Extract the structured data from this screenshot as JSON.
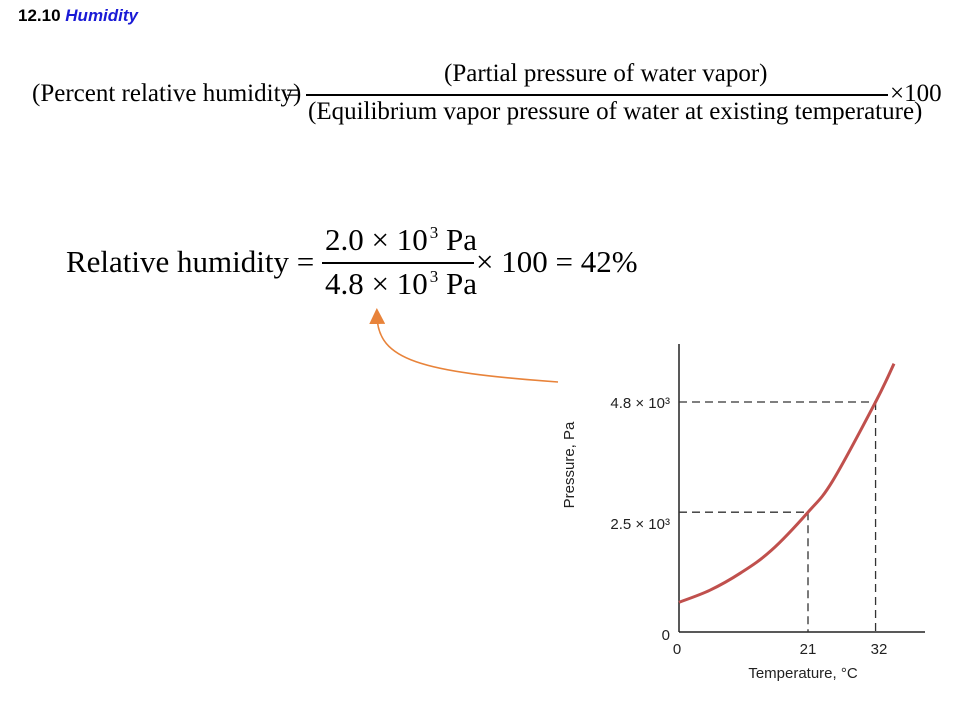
{
  "title": {
    "number": "12.10",
    "word": "Humidity"
  },
  "formula1": {
    "lhs": "(Percent relative humidity)",
    "equals": "=",
    "numerator": "(Partial pressure of water vapor)",
    "denominator": "(Equilibrium vapor pressure of water at existing temperature)",
    "times": "×100"
  },
  "formula2": {
    "lhs": "Relative humidity =",
    "num_mantissa": "2.0 × 10",
    "num_exp": "3",
    "num_unit": "Pa",
    "den_mantissa": "4.8 × 10",
    "den_exp": "3",
    "den_unit": "Pa",
    "rhs": "× 100 = 42%"
  },
  "colors": {
    "curve": "#c0504d",
    "arrow": "#e8833a",
    "title_accent": "#1a1ad6"
  },
  "chart_data": {
    "type": "line",
    "xlabel": "Temperature, °C",
    "ylabel": "Pressure, Pa",
    "xlim": [
      0,
      40
    ],
    "ylim": [
      0,
      6000
    ],
    "x_ticks": [
      "0",
      "21",
      "32"
    ],
    "y_ticks": [
      "0",
      "2.5 × 10³",
      "4.8 × 10³"
    ],
    "curve": [
      [
        0,
        620
      ],
      [
        5,
        870
      ],
      [
        10,
        1230
      ],
      [
        15,
        1700
      ],
      [
        21,
        2500
      ],
      [
        25,
        3150
      ],
      [
        32,
        4800
      ],
      [
        35,
        5600
      ]
    ],
    "reference_points": [
      {
        "x": 21,
        "y": 2500
      },
      {
        "x": 32,
        "y": 4800
      }
    ]
  }
}
